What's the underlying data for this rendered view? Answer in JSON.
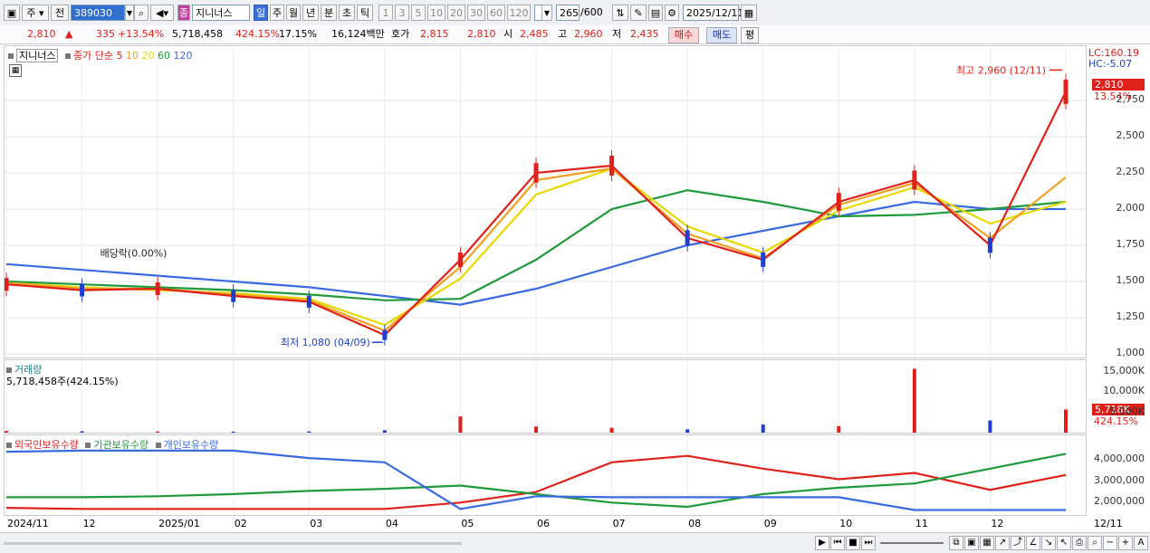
{
  "toolbar": {
    "market": "주",
    "prev": "전",
    "code": "389030",
    "stock_name": "지니너스",
    "periods": [
      "일",
      "주",
      "월",
      "년",
      "분",
      "초",
      "틱"
    ],
    "intervals": [
      "1",
      "3",
      "5",
      "10",
      "20",
      "30",
      "60",
      "120"
    ],
    "count": "265",
    "count_max": "/600",
    "date": "2025/12/11"
  },
  "priceline": {
    "price": "2,810",
    "change": "335",
    "change_pct": "+13.54%",
    "volume": "5,718,458",
    "volume_ratio": "424.15%",
    "turnover": "17.15%",
    "amount": "16,124백만",
    "quote_label": "호가",
    "ask": "2,815",
    "bid": "2,810",
    "open_label": "시",
    "open": "2,485",
    "high_label": "고",
    "high": "2,960",
    "low_label": "저",
    "low": "2,435",
    "buy": "매수",
    "sell": "매도",
    "avg": "평"
  },
  "price_panel": {
    "name_tag": "지니너스",
    "legend_main": "종가 단순",
    "legend_periods": [
      {
        "label": "5",
        "color": "#e0201a"
      },
      {
        "label": "10",
        "color": "#f0a020"
      },
      {
        "label": "20",
        "color": "#e8d800"
      },
      {
        "label": "60",
        "color": "#1f9a3a"
      },
      {
        "label": "120",
        "color": "#3a6ae0"
      }
    ],
    "lc": "LC:160.19",
    "hc": "HC:-5.07",
    "high_annotation": "최고 2,960 (12/11)",
    "low_annotation": "최저 1,080 (04/09)",
    "dividend_annotation": "배당락(0.00%)",
    "last_price_tag": "2,810",
    "last_pct": "13.54%"
  },
  "volume_panel": {
    "title": "거래량",
    "subtitle": "5,718,458주(424.15%)",
    "last_tag": "5,718K",
    "last_pct": "424.15%"
  },
  "holdings_panel": {
    "legend": [
      {
        "label": "외국인보유수량",
        "color": "#e0201a"
      },
      {
        "label": "기관보유수량",
        "color": "#1f9a3a"
      },
      {
        "label": "개인보유수량",
        "color": "#3a6ae0"
      }
    ]
  },
  "x_axis": {
    "labels": [
      "2024/11",
      "12",
      "2025/01",
      "02",
      "03",
      "04",
      "05",
      "06",
      "07",
      "08",
      "09",
      "10",
      "11",
      "12"
    ],
    "right_label": "12/11"
  },
  "colors": {
    "up": "#e0201a",
    "down": "#1f3fd0",
    "accent": "#3b6fd1"
  },
  "chart_data": [
    {
      "type": "line",
      "title": "지니너스 종가",
      "x": [
        "2024/11",
        "12",
        "2025/01",
        "02",
        "03",
        "04",
        "05",
        "06",
        "07",
        "08",
        "09",
        "10",
        "11",
        "12",
        "12/11"
      ],
      "series": [
        {
          "name": "5",
          "values": [
            1480,
            1440,
            1450,
            1400,
            1360,
            1130,
            1650,
            2250,
            2300,
            1800,
            1650,
            2050,
            2200,
            1750,
            2810
          ]
        },
        {
          "name": "10",
          "values": [
            1490,
            1450,
            1450,
            1410,
            1370,
            1160,
            1600,
            2200,
            2280,
            1830,
            1660,
            2030,
            2180,
            1800,
            2220
          ]
        },
        {
          "name": "20",
          "values": [
            1490,
            1460,
            1440,
            1420,
            1380,
            1200,
            1520,
            2100,
            2280,
            1880,
            1700,
            1990,
            2150,
            1900,
            2050
          ]
        },
        {
          "name": "60",
          "values": [
            1500,
            1480,
            1460,
            1440,
            1410,
            1370,
            1380,
            1650,
            2000,
            2130,
            2050,
            1950,
            1960,
            2000,
            2050
          ]
        },
        {
          "name": "120",
          "values": [
            1620,
            1580,
            1540,
            1500,
            1460,
            1400,
            1340,
            1450,
            1600,
            1750,
            1850,
            1950,
            2050,
            2000,
            2000
          ]
        }
      ],
      "ylim": [
        1000,
        3000
      ],
      "yticks": [
        1000,
        1250,
        1500,
        1750,
        2000,
        2250,
        2500,
        2750
      ],
      "annotations": [
        {
          "text": "최고 2,960 (12/11)",
          "x": "12/11",
          "y": 2960
        },
        {
          "text": "최저 1,080 (04/09)",
          "x": "04/09",
          "y": 1080
        }
      ]
    },
    {
      "type": "bar",
      "title": "거래량",
      "x": [
        "2024/11",
        "12",
        "2025/01",
        "02",
        "03",
        "04",
        "05",
        "06",
        "07",
        "08",
        "09",
        "10",
        "11",
        "12",
        "12/11"
      ],
      "values": [
        400,
        350,
        300,
        250,
        300,
        600,
        4000,
        1500,
        1200,
        800,
        2000,
        1600,
        15800,
        3000,
        5718
      ],
      "unit": "K",
      "ylim": [
        0,
        17000
      ],
      "yticks": [
        5000,
        10000,
        15000
      ]
    },
    {
      "type": "line",
      "title": "보유수량",
      "x": [
        "2024/11",
        "12",
        "2025/01",
        "02",
        "03",
        "04",
        "05",
        "06",
        "07",
        "08",
        "09",
        "10",
        "11",
        "12",
        "12/11"
      ],
      "series": [
        {
          "name": "외국인보유수량",
          "values": [
            1750000,
            1700000,
            1700000,
            1700000,
            1700000,
            1700000,
            2000000,
            2500000,
            3900000,
            4200000,
            3600000,
            3100000,
            3400000,
            2600000,
            3300000
          ]
        },
        {
          "name": "기관보유수량",
          "values": [
            2250000,
            2250000,
            2300000,
            2400000,
            2550000,
            2650000,
            2800000,
            2400000,
            2000000,
            1800000,
            2400000,
            2700000,
            2900000,
            3600000,
            4300000
          ]
        },
        {
          "name": "개인보유수량",
          "values": [
            4400000,
            4450000,
            4450000,
            4450000,
            4100000,
            3900000,
            1700000,
            2300000,
            2250000,
            2250000,
            2250000,
            2250000,
            1650000,
            1650000,
            1650000
          ]
        }
      ],
      "ylim": [
        1500000,
        5000000
      ],
      "yticks": [
        2000000,
        3000000,
        4000000
      ]
    }
  ]
}
